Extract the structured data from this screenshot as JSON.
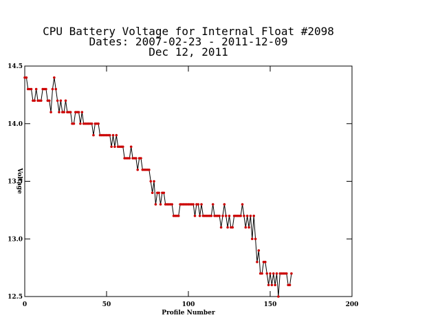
{
  "chart_data": {
    "type": "line",
    "title": [
      "CPU Battery Voltage for Internal Float #2098",
      "Dates:  2007-02-23 -  2011-12-09",
      "Dec 12, 2011"
    ],
    "xlabel": "Profile Number",
    "ylabel": "Voltage",
    "x": [
      0,
      1,
      2,
      3,
      4,
      5,
      6,
      7,
      8,
      9,
      10,
      11,
      12,
      13,
      14,
      15,
      16,
      17,
      18,
      19,
      20,
      21,
      22,
      23,
      24,
      25,
      26,
      27,
      28,
      29,
      30,
      31,
      32,
      33,
      34,
      35,
      36,
      37,
      38,
      39,
      40,
      41,
      42,
      43,
      44,
      45,
      46,
      47,
      48,
      49,
      50,
      51,
      52,
      53,
      54,
      55,
      56,
      57,
      58,
      59,
      60,
      61,
      62,
      63,
      64,
      65,
      66,
      67,
      68,
      69,
      70,
      71,
      72,
      73,
      74,
      75,
      76,
      77,
      78,
      79,
      80,
      81,
      82,
      83,
      84,
      85,
      86,
      87,
      88,
      89,
      90,
      91,
      92,
      93,
      94,
      95,
      96,
      97,
      98,
      99,
      100,
      101,
      102,
      103,
      104,
      105,
      106,
      107,
      108,
      109,
      110,
      111,
      112,
      113,
      114,
      115,
      116,
      117,
      118,
      119,
      120,
      121,
      122,
      123,
      124,
      125,
      126,
      127,
      128,
      129,
      130,
      131,
      132,
      133,
      134,
      135,
      136,
      137,
      138,
      139,
      140,
      141,
      142,
      143,
      144,
      145,
      146,
      147,
      148,
      149,
      150,
      151,
      152,
      153,
      154,
      155,
      156,
      157,
      158,
      159,
      160,
      161,
      162,
      163
    ],
    "series": [
      {
        "name": "Voltage",
        "color": "#000000",
        "marker_color": "#cc0000",
        "values": [
          14.4,
          14.4,
          14.3,
          14.3,
          14.3,
          14.2,
          14.2,
          14.3,
          14.2,
          14.2,
          14.2,
          14.3,
          14.3,
          14.3,
          14.2,
          14.2,
          14.1,
          14.3,
          14.4,
          14.3,
          14.2,
          14.1,
          14.2,
          14.1,
          14.1,
          14.2,
          14.1,
          14.1,
          14.1,
          14.0,
          14.0,
          14.1,
          14.1,
          14.1,
          14.0,
          14.1,
          14.0,
          14.0,
          14.0,
          14.0,
          14.0,
          14.0,
          13.9,
          14.0,
          14.0,
          14.0,
          13.9,
          13.9,
          13.9,
          13.9,
          13.9,
          13.9,
          13.9,
          13.8,
          13.9,
          13.8,
          13.9,
          13.8,
          13.8,
          13.8,
          13.8,
          13.7,
          13.7,
          13.7,
          13.7,
          13.8,
          13.7,
          13.7,
          13.7,
          13.6,
          13.7,
          13.7,
          13.6,
          13.6,
          13.6,
          13.6,
          13.6,
          13.5,
          13.4,
          13.5,
          13.3,
          13.4,
          13.4,
          13.3,
          13.4,
          13.4,
          13.3,
          13.3,
          13.3,
          13.3,
          13.3,
          13.2,
          13.2,
          13.2,
          13.2,
          13.3,
          13.3,
          13.3,
          13.3,
          13.3,
          13.3,
          13.3,
          13.3,
          13.3,
          13.2,
          13.3,
          13.3,
          13.2,
          13.3,
          13.2,
          13.2,
          13.2,
          13.2,
          13.2,
          13.2,
          13.3,
          13.2,
          13.2,
          13.2,
          13.2,
          13.1,
          13.2,
          13.3,
          13.2,
          13.1,
          13.2,
          13.1,
          13.1,
          13.2,
          13.2,
          13.2,
          13.2,
          13.2,
          13.3,
          13.2,
          13.1,
          13.2,
          13.1,
          13.2,
          13.0,
          13.2,
          13.0,
          12.8,
          12.9,
          12.7,
          12.7,
          12.8,
          12.8,
          12.7,
          12.6,
          12.7,
          12.6,
          12.7,
          12.6,
          12.7,
          12.5,
          12.7,
          12.7,
          12.7,
          12.7,
          12.7,
          12.6,
          12.6,
          12.7
        ]
      }
    ],
    "xlim": [
      0,
      200
    ],
    "xticks": [
      0,
      50,
      100,
      150,
      200
    ],
    "ylim": [
      12.5,
      14.5
    ],
    "yticks": [
      12.5,
      {
        "value": 13,
        "label": "13.0"
      },
      13.5,
      {
        "value": 14,
        "label": "14.0"
      },
      14.5
    ]
  }
}
